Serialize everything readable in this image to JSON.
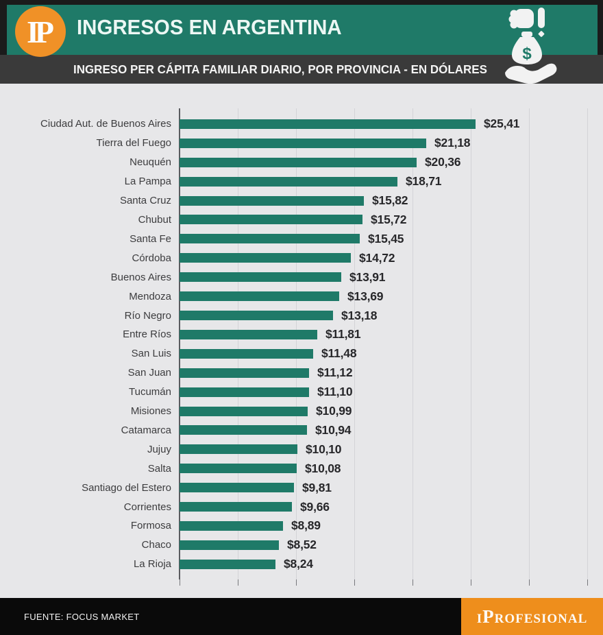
{
  "header": {
    "logo_text": "IP",
    "title": "INGRESOS EN ARGENTINA",
    "subtitle": "INGRESO PER CÁPITA FAMILIAR DIARIO, POR PROVINCIA - EN DÓLARES"
  },
  "chart_data": {
    "type": "bar",
    "orientation": "horizontal",
    "title": "INGRESO PER CÁPITA FAMILIAR DIARIO, POR PROVINCIA - EN DÓLARES",
    "unit": "dólares por día",
    "categories": [
      "Ciudad Aut. de Buenos Aires",
      "Tierra del Fuego",
      "Neuquén",
      "La Pampa",
      "Santa Cruz",
      "Chubut",
      "Santa Fe",
      "Córdoba",
      "Buenos Aires",
      "Mendoza",
      "Río Negro",
      "Entre Ríos",
      "San Luis",
      "San Juan",
      "Tucumán",
      "Misiones",
      "Catamarca",
      "Jujuy",
      "Salta",
      "Santiago del Estero",
      "Corrientes",
      "Formosa",
      "Chaco",
      "La Rioja"
    ],
    "values": [
      25.41,
      21.18,
      20.36,
      18.71,
      15.82,
      15.72,
      15.45,
      14.72,
      13.91,
      13.69,
      13.18,
      11.81,
      11.48,
      11.12,
      11.1,
      10.99,
      10.94,
      10.1,
      10.08,
      9.81,
      9.66,
      8.89,
      8.52,
      8.24
    ],
    "value_labels": [
      "$25,41",
      "$21,18",
      "$20,36",
      "$18,71",
      "$15,82",
      "$15,72",
      "$15,45",
      "$14,72",
      "$13,91",
      "$13,69",
      "$13,18",
      "$11,81",
      "$11,48",
      "$11,12",
      "$11,10",
      "$10,99",
      "$10,94",
      "$10,10",
      "$10,08",
      "$9,81",
      "$9,66",
      "$8,89",
      "$8,52",
      "$8,24"
    ],
    "xlim": [
      0,
      35.5
    ],
    "gridline_step": 5,
    "grid": true,
    "bar_color": "#1f7a68"
  },
  "footer": {
    "source": "FUENTE: FOCUS MARKET",
    "brand": "iProfesional"
  },
  "colors": {
    "teal": "#1f7a68",
    "header_frame": "#1b1b1b",
    "subtitle_bar": "#3a3a3a",
    "chart_bg": "#e7e7e9",
    "logo_orange": "#f09127",
    "brand_orange": "#ee8e1c",
    "footer_bg": "#0a0a0a"
  }
}
